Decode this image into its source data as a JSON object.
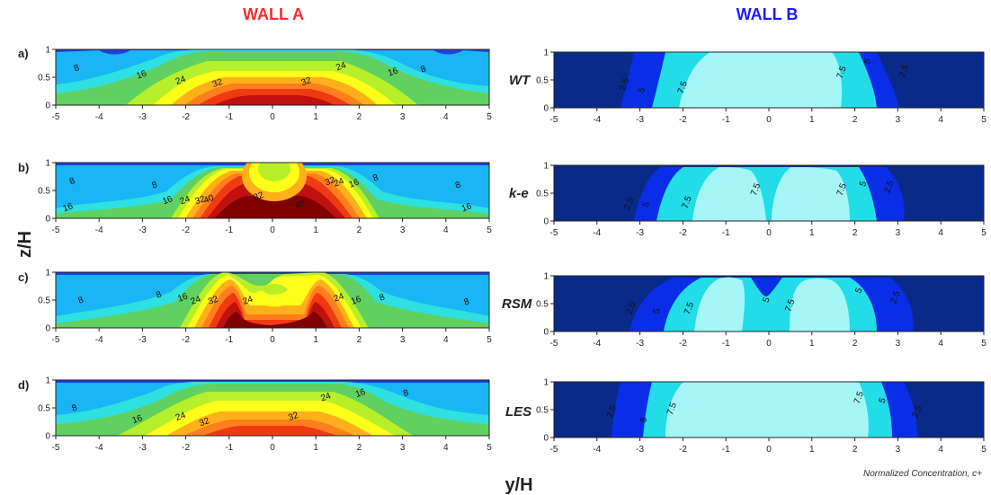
{
  "colors": {
    "wallA_title": "#ff2a2a",
    "wallB_title": "#1a1aff",
    "wallA_levels": [
      "#1f3fe0",
      "#19b5f5",
      "#2fe0e0",
      "#60d060",
      "#b7f02a",
      "#ffff19",
      "#ffb01a",
      "#ff7f1e",
      "#f23a12",
      "#c01010",
      "#800000"
    ],
    "wallB_levels": [
      "#0a2a8a",
      "#0a2ee8",
      "#22dde8",
      "#a6f6f8"
    ]
  },
  "chart_data": {
    "wall_a_title": "WALL A",
    "wall_b_title": "WALL B",
    "xlabel": "y/H",
    "ylabel": "z/H",
    "caption": "Normalized Concentration, c+",
    "xlim": [
      -5,
      5
    ],
    "ylim": [
      0,
      1
    ],
    "x_ticks": [
      "-5",
      "-4",
      "-3",
      "-2",
      "-1",
      "0",
      "1",
      "2",
      "3",
      "4",
      "5"
    ],
    "y_ticks": [
      "0",
      "0.5",
      "1"
    ],
    "rows": [
      {
        "letter": "a)",
        "model": "WT",
        "wall_a": {
          "type": "contour",
          "levels": [
            8,
            16,
            24,
            32
          ],
          "labels": [
            {
              "text": "8",
              "y": -4.5,
              "z": 0.62
            },
            {
              "text": "16",
              "y": -3.0,
              "z": 0.5
            },
            {
              "text": "24",
              "y": -2.1,
              "z": 0.4
            },
            {
              "text": "32",
              "y": -1.25,
              "z": 0.35
            },
            {
              "text": "32",
              "y": 0.8,
              "z": 0.38
            },
            {
              "text": "24",
              "y": 1.6,
              "z": 0.65
            },
            {
              "text": "16",
              "y": 2.8,
              "z": 0.55
            },
            {
              "text": "8",
              "y": 3.5,
              "z": 0.6
            }
          ]
        },
        "wall_b": {
          "type": "contour",
          "levels": [
            2.5,
            5,
            7.5
          ],
          "labels": [
            {
              "text": "2.5",
              "y": -3.3,
              "z": 0.4
            },
            {
              "text": "5",
              "y": -2.9,
              "z": 0.3
            },
            {
              "text": "7.5",
              "y": -1.95,
              "z": 0.35
            },
            {
              "text": "7.5",
              "y": 1.75,
              "z": 0.62
            },
            {
              "text": "5",
              "y": 2.35,
              "z": 0.82
            },
            {
              "text": "2.5",
              "y": 3.2,
              "z": 0.65
            }
          ]
        }
      },
      {
        "letter": "b)",
        "model": "k-e",
        "wall_a": {
          "type": "contour",
          "levels": [
            8,
            16,
            24,
            32,
            40
          ],
          "labels": [
            {
              "text": "8",
              "y": -4.6,
              "z": 0.62
            },
            {
              "text": "16",
              "y": -4.7,
              "z": 0.15
            },
            {
              "text": "8",
              "y": -2.7,
              "z": 0.55
            },
            {
              "text": "16",
              "y": -2.4,
              "z": 0.28
            },
            {
              "text": "24",
              "y": -2.0,
              "z": 0.28
            },
            {
              "text": "32",
              "y": -1.65,
              "z": 0.28
            },
            {
              "text": "40",
              "y": -1.45,
              "z": 0.3
            },
            {
              "text": "32",
              "y": -0.3,
              "z": 0.35
            },
            {
              "text": "40",
              "y": 0.65,
              "z": 0.2
            },
            {
              "text": "32",
              "y": 1.35,
              "z": 0.62
            },
            {
              "text": "24",
              "y": 1.55,
              "z": 0.6
            },
            {
              "text": "16",
              "y": 1.9,
              "z": 0.58
            },
            {
              "text": "8",
              "y": 2.4,
              "z": 0.68
            },
            {
              "text": "8",
              "y": 4.3,
              "z": 0.55
            },
            {
              "text": "16",
              "y": 4.5,
              "z": 0.15
            }
          ]
        },
        "wall_b": {
          "type": "contour",
          "levels": [
            2.5,
            5,
            7.5
          ],
          "labels": [
            {
              "text": "2.5",
              "y": -3.2,
              "z": 0.3
            },
            {
              "text": "5",
              "y": -2.8,
              "z": 0.28
            },
            {
              "text": "7.5",
              "y": -1.85,
              "z": 0.32
            },
            {
              "text": "7.5",
              "y": -0.25,
              "z": 0.55
            },
            {
              "text": "7.5",
              "y": 1.75,
              "z": 0.55
            },
            {
              "text": "5",
              "y": 2.25,
              "z": 0.65
            },
            {
              "text": "2.5",
              "y": 2.85,
              "z": 0.6
            }
          ]
        }
      },
      {
        "letter": "c)",
        "model": "RSM",
        "wall_a": {
          "type": "contour",
          "levels": [
            8,
            16,
            24,
            32
          ],
          "labels": [
            {
              "text": "8",
              "y": -4.4,
              "z": 0.45
            },
            {
              "text": "8",
              "y": -2.6,
              "z": 0.55
            },
            {
              "text": "16",
              "y": -2.05,
              "z": 0.5
            },
            {
              "text": "24",
              "y": -1.75,
              "z": 0.45
            },
            {
              "text": "32",
              "y": -1.35,
              "z": 0.45
            },
            {
              "text": "24",
              "y": -0.55,
              "z": 0.45
            },
            {
              "text": "24",
              "y": 1.55,
              "z": 0.5
            },
            {
              "text": "16",
              "y": 1.95,
              "z": 0.45
            },
            {
              "text": "8",
              "y": 2.55,
              "z": 0.5
            },
            {
              "text": "8",
              "y": 4.5,
              "z": 0.42
            }
          ]
        },
        "wall_b": {
          "type": "contour",
          "levels": [
            2.5,
            5,
            7.5
          ],
          "labels": [
            {
              "text": "2.5",
              "y": -3.15,
              "z": 0.4
            },
            {
              "text": "5",
              "y": -2.55,
              "z": 0.35
            },
            {
              "text": "7.5",
              "y": -1.8,
              "z": 0.4
            },
            {
              "text": "5",
              "y": 0.0,
              "z": 0.55
            },
            {
              "text": "7.5",
              "y": 0.55,
              "z": 0.45
            },
            {
              "text": "5",
              "y": 2.15,
              "z": 0.72
            },
            {
              "text": "2.5",
              "y": 3.0,
              "z": 0.6
            }
          ]
        }
      },
      {
        "letter": "d)",
        "model": "LES",
        "wall_a": {
          "type": "contour",
          "levels": [
            8,
            16,
            24,
            32
          ],
          "labels": [
            {
              "text": "8",
              "y": -4.55,
              "z": 0.45
            },
            {
              "text": "16",
              "y": -3.1,
              "z": 0.25
            },
            {
              "text": "24",
              "y": -2.1,
              "z": 0.3
            },
            {
              "text": "32",
              "y": -1.55,
              "z": 0.2
            },
            {
              "text": "32",
              "y": 0.5,
              "z": 0.3
            },
            {
              "text": "24",
              "y": 1.25,
              "z": 0.65
            },
            {
              "text": "16",
              "y": 2.05,
              "z": 0.72
            },
            {
              "text": "8",
              "y": 3.1,
              "z": 0.72
            }
          ]
        },
        "wall_b": {
          "type": "contour",
          "levels": [
            2.5,
            5,
            7.5
          ],
          "labels": [
            {
              "text": "2.5",
              "y": -3.6,
              "z": 0.45
            },
            {
              "text": "5",
              "y": -2.85,
              "z": 0.3
            },
            {
              "text": "7.5",
              "y": -2.2,
              "z": 0.5
            },
            {
              "text": "7.5",
              "y": 2.15,
              "z": 0.7
            },
            {
              "text": "5",
              "y": 2.7,
              "z": 0.65
            },
            {
              "text": "2.5",
              "y": 3.5,
              "z": 0.45
            }
          ]
        }
      }
    ]
  }
}
